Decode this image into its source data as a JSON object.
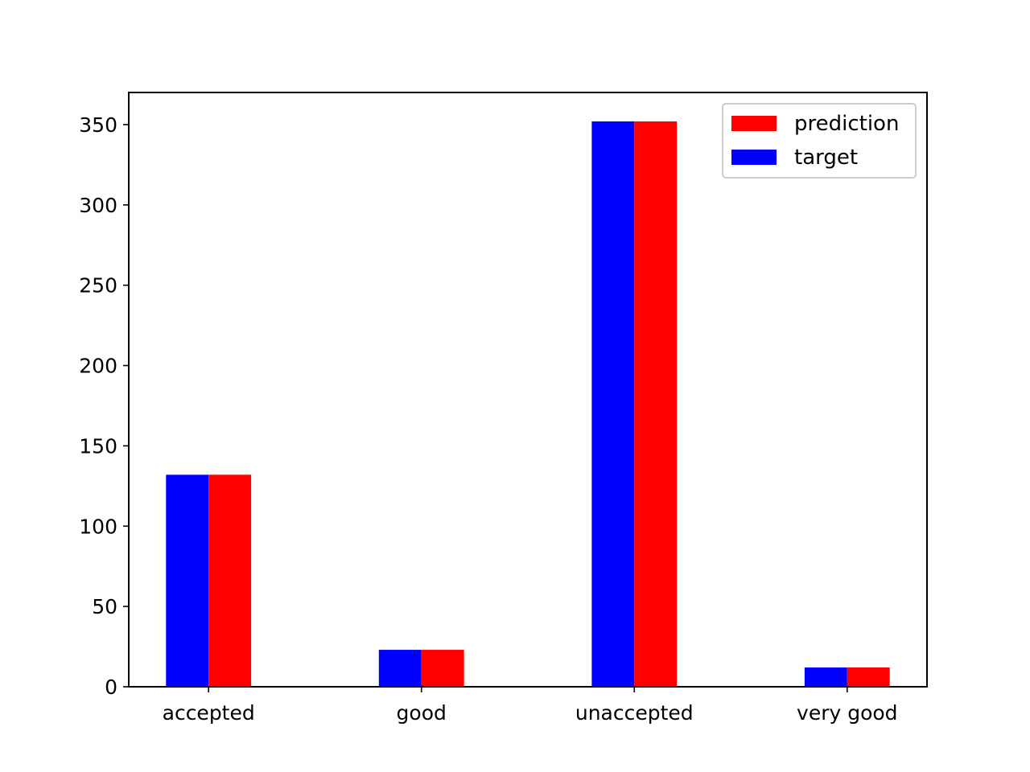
{
  "chart_data": {
    "type": "bar",
    "title": "",
    "xlabel": "",
    "ylabel": "",
    "categories": [
      "accepted",
      "good",
      "unaccepted",
      "very good"
    ],
    "series": [
      {
        "name": "target",
        "color": "#0000ff",
        "values": [
          132,
          23,
          352,
          12
        ]
      },
      {
        "name": "prediction",
        "color": "#ff0000",
        "values": [
          132,
          23,
          352,
          12
        ]
      }
    ],
    "ylim": [
      0,
      370
    ],
    "yticks": [
      0,
      50,
      100,
      150,
      200,
      250,
      300,
      350
    ],
    "grid": false,
    "legend": {
      "placement": "top-right",
      "order": [
        "prediction",
        "target"
      ]
    }
  }
}
